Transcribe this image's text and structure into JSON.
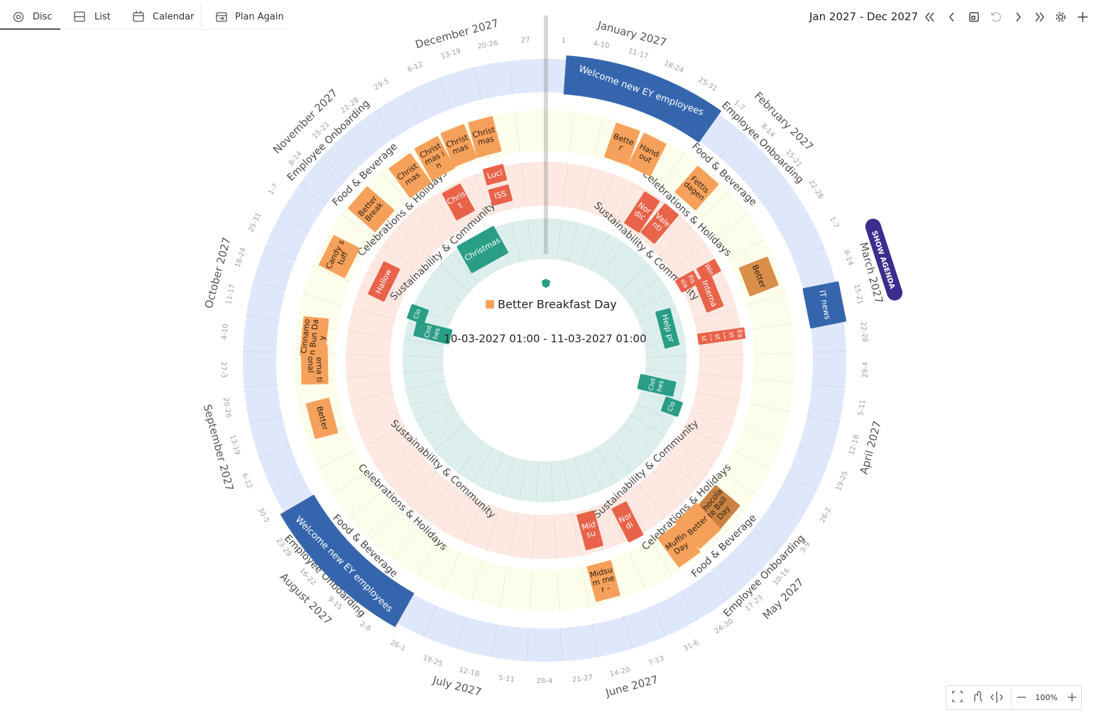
{
  "tabs": [
    "Disc",
    "List",
    "Calendar",
    "Plan Again"
  ],
  "header": {
    "range": "Jan 2027 - Dec 2027"
  },
  "agenda_button": "SHOW AGENDA",
  "zoom": "100%",
  "months": [
    "January 2027",
    "February 2027",
    "March 2027",
    "April 2027",
    "May 2027",
    "June 2027",
    "July 2027",
    "August 2027",
    "September 2027",
    "October 2027",
    "November 2027",
    "December 2027"
  ],
  "weeks": [
    "1",
    "4-10",
    "11-17",
    "18-24",
    "25-31",
    "1-7",
    "8-14",
    "15-21",
    "22-28",
    "1-7",
    "8-14",
    "15-21",
    "22-28",
    "29-4",
    "5-11",
    "12-18",
    "19-25",
    "26-2",
    "3-9",
    "10-16",
    "17-23",
    "24-30",
    "31-6",
    "7-13",
    "14-20",
    "21-27",
    "28-4",
    "5-11",
    "12-18",
    "19-25",
    "26-1",
    "2-8",
    "9-15",
    "16-22",
    "23-29",
    "30-5",
    "6-12",
    "13-19",
    "20-26",
    "27-3",
    "4-10",
    "11-17",
    "18-24",
    "25-31",
    "1-7",
    "8-14",
    "15-21",
    "22-28",
    "29-5",
    "6-12",
    "13-19",
    "20-26",
    "27"
  ],
  "rings": [
    {
      "name": "Employee Onboarding",
      "color": "#dfe8fb",
      "events": [
        {
          "label": "Welcome new EY employees",
          "color": "#3566ad"
        },
        {
          "label": "IT news",
          "color": "#3566ad"
        },
        {
          "label": "Welcome new EY employees",
          "color": "#3566ad"
        }
      ]
    },
    {
      "name": "Food & Beverage",
      "color": "#fdfdec",
      "events": [
        {
          "label": "Better",
          "color": "#f6a15b"
        },
        {
          "label": "Hand out",
          "color": "#f6a15b"
        },
        {
          "label": "Fettis dagen",
          "color": "#f6a15b"
        },
        {
          "label": "Better",
          "color": "#d98f4a"
        },
        {
          "label": "Chocolate Ball Day",
          "color": "#c98241"
        },
        {
          "label": "Better",
          "color": "#f6a15b"
        },
        {
          "label": "Muffin Day",
          "color": "#f6a15b"
        },
        {
          "label": "Midsum mer -",
          "color": "#f6a15b"
        },
        {
          "label": "Better",
          "color": "#f6a15b"
        },
        {
          "label": "Interna tional",
          "color": "#f6a15b"
        },
        {
          "label": "Cinnamon Bun Day",
          "color": "#f6a15b"
        },
        {
          "label": "Candy stuff",
          "color": "#f6a15b"
        },
        {
          "label": "Better Break",
          "color": "#f6a15b"
        },
        {
          "label": "Christmas",
          "color": "#f6a15b"
        },
        {
          "label": "Christmas in",
          "color": "#f6a15b"
        },
        {
          "label": "Christmas",
          "color": "#f6a15b"
        },
        {
          "label": "Christmas",
          "color": "#f6a15b"
        }
      ]
    },
    {
      "name": "Celebrations & Holidays",
      "color": "#fde9e2",
      "events": [
        {
          "label": "Nordic",
          "color": "#e8634a"
        },
        {
          "label": "Valenti",
          "color": "#e8634a"
        },
        {
          "label": "Fis sla",
          "color": "#e8634a"
        },
        {
          "label": "Win",
          "color": "#e8634a"
        },
        {
          "label": "Interna",
          "color": "#e8634a"
        },
        {
          "label": "East",
          "color": "#e8634a"
        },
        {
          "label": "East",
          "color": "#e8634a"
        },
        {
          "label": "East",
          "color": "#e8634a"
        },
        {
          "label": "Nordi",
          "color": "#e8634a"
        },
        {
          "label": "Midsu",
          "color": "#e8634a"
        },
        {
          "label": "Hallow",
          "color": "#e8634a"
        },
        {
          "label": "Christ",
          "color": "#e8634a"
        },
        {
          "label": "Luci",
          "color": "#e8634a"
        },
        {
          "label": "ISS",
          "color": "#e8634a"
        }
      ]
    },
    {
      "name": "Sustainability & Community",
      "color": "#dcefec",
      "events": [
        {
          "label": "Help pr",
          "color": "#2a9d86"
        },
        {
          "label": "Clothes",
          "color": "#2a9d86"
        },
        {
          "label": "Clo",
          "color": "#2a9d86"
        },
        {
          "label": "Clothes",
          "color": "#2a9d86"
        },
        {
          "label": "Clo",
          "color": "#2a9d86"
        },
        {
          "label": "Christmas",
          "color": "#2a9d86"
        }
      ]
    }
  ],
  "selected": {
    "title": "Better Breakfast Day",
    "color": "#f6a15b",
    "time": "10-03-2027 01:00 - 11-03-2027 01:00"
  }
}
